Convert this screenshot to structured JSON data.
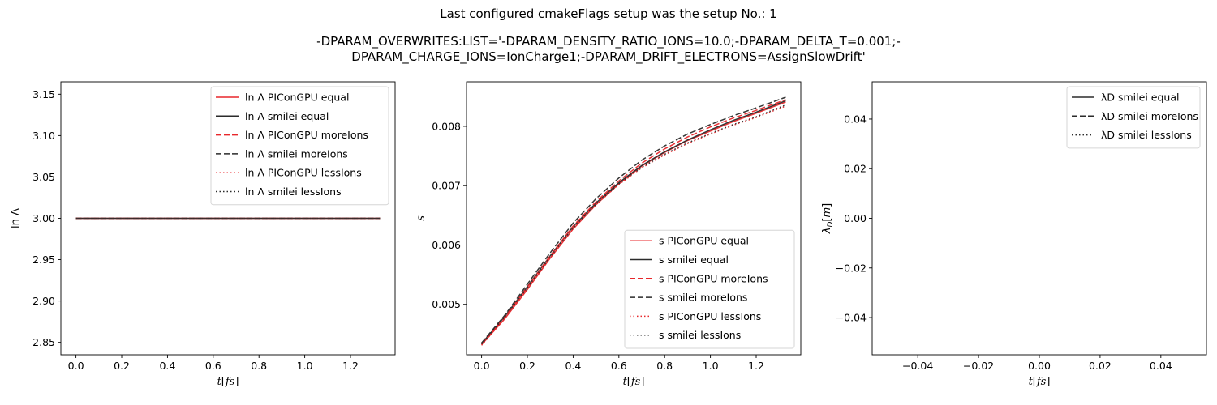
{
  "figure": {
    "suptitle": "Last configured cmakeFlags setup was the setup No.: 1",
    "subtitle_line1": "-DPARAM_OVERWRITES:LIST='-DPARAM_DENSITY_RATIO_IONS=10.0;-DPARAM_DELTA_T=0.001;-",
    "subtitle_line2": "DPARAM_CHARGE_IONS=IonCharge1;-DPARAM_DRIFT_ELECTRONS=AssignSlowDrift'"
  },
  "colors": {
    "red": "#e8272b",
    "black": "#2b2b2b",
    "axis": "#000000"
  },
  "chart_data": [
    {
      "type": "line",
      "id": "coulomb-log",
      "xlabel": "t[fs]",
      "ylabel": "ln Λ",
      "xlim": [
        -0.066,
        1.395
      ],
      "ylim": [
        2.835,
        3.165
      ],
      "xticks": [
        0.0,
        0.2,
        0.4,
        0.6,
        0.8,
        1.0,
        1.2
      ],
      "xtick_labels": [
        "0.0",
        "0.2",
        "0.4",
        "0.6",
        "0.8",
        "1.0",
        "1.2"
      ],
      "yticks": [
        2.85,
        2.9,
        2.95,
        3.0,
        3.05,
        3.1,
        3.15
      ],
      "ytick_labels": [
        "2.85",
        "2.90",
        "2.95",
        "3.00",
        "3.05",
        "3.10",
        "3.15"
      ],
      "legend_position": "top-right",
      "series": [
        {
          "name": "ln Λ PIConGPU equal",
          "color": "red",
          "dash": "solid",
          "x": [
            0.0,
            1.329
          ],
          "y": [
            3.0,
            3.0
          ]
        },
        {
          "name": "ln Λ smilei equal",
          "color": "black",
          "dash": "solid",
          "x": [
            0.0,
            1.329
          ],
          "y": [
            3.0,
            3.0
          ]
        },
        {
          "name": "ln Λ PIConGPU moreIons",
          "color": "red",
          "dash": "dashed",
          "x": [
            0.0,
            1.329
          ],
          "y": [
            3.0,
            3.0
          ]
        },
        {
          "name": "ln Λ smilei moreIons",
          "color": "black",
          "dash": "dashed",
          "x": [
            0.0,
            1.329
          ],
          "y": [
            3.0,
            3.0
          ]
        },
        {
          "name": "ln Λ PIConGPU lessIons",
          "color": "red",
          "dash": "dotted",
          "x": [
            0.0,
            1.329
          ],
          "y": [
            3.0,
            3.0
          ]
        },
        {
          "name": "ln Λ smilei lessIons",
          "color": "black",
          "dash": "dotted",
          "x": [
            0.0,
            1.329
          ],
          "y": [
            3.0,
            3.0
          ]
        }
      ]
    },
    {
      "type": "line",
      "id": "s-parameter",
      "xlabel": "t[fs]",
      "ylabel": "s",
      "xlim": [
        -0.066,
        1.395
      ],
      "ylim": [
        0.00415,
        0.00875
      ],
      "xticks": [
        0.0,
        0.2,
        0.4,
        0.6,
        0.8,
        1.0,
        1.2
      ],
      "xtick_labels": [
        "0.0",
        "0.2",
        "0.4",
        "0.6",
        "0.8",
        "1.0",
        "1.2"
      ],
      "yticks": [
        0.005,
        0.006,
        0.007,
        0.008
      ],
      "ytick_labels": [
        "0.005",
        "0.006",
        "0.007",
        "0.008"
      ],
      "legend_position": "bottom-right",
      "series": [
        {
          "name": "s PIConGPU equal",
          "color": "red",
          "dash": "solid",
          "x": [
            0.0,
            0.1,
            0.2,
            0.3,
            0.4,
            0.5,
            0.6,
            0.7,
            0.8,
            0.9,
            1.0,
            1.1,
            1.2,
            1.329
          ],
          "y": [
            0.00432,
            0.00475,
            0.00525,
            0.00578,
            0.00627,
            0.00668,
            0.00703,
            0.00733,
            0.00756,
            0.00776,
            0.00792,
            0.00808,
            0.00822,
            0.00841
          ]
        },
        {
          "name": "s smilei equal",
          "color": "black",
          "dash": "solid",
          "x": [
            0.0,
            0.1,
            0.2,
            0.3,
            0.4,
            0.5,
            0.6,
            0.7,
            0.8,
            0.9,
            1.0,
            1.1,
            1.2,
            1.329
          ],
          "y": [
            0.00434,
            0.00479,
            0.0053,
            0.00582,
            0.00631,
            0.00671,
            0.00705,
            0.00734,
            0.00757,
            0.00777,
            0.00794,
            0.0081,
            0.00824,
            0.00843
          ]
        },
        {
          "name": "s PIConGPU moreIons",
          "color": "red",
          "dash": "dashed",
          "x": [
            0.0,
            0.1,
            0.2,
            0.3,
            0.4,
            0.5,
            0.6,
            0.7,
            0.8,
            0.9,
            1.0,
            1.1,
            1.2,
            1.329
          ],
          "y": [
            0.00433,
            0.00478,
            0.00529,
            0.00582,
            0.00632,
            0.00673,
            0.00708,
            0.00738,
            0.00762,
            0.00782,
            0.00799,
            0.00814,
            0.00827,
            0.00845
          ]
        },
        {
          "name": "s smilei moreIons",
          "color": "black",
          "dash": "dashed",
          "x": [
            0.0,
            0.1,
            0.2,
            0.3,
            0.4,
            0.5,
            0.6,
            0.7,
            0.8,
            0.9,
            1.0,
            1.1,
            1.2,
            1.329
          ],
          "y": [
            0.00435,
            0.00481,
            0.00534,
            0.00587,
            0.00637,
            0.00678,
            0.00713,
            0.00743,
            0.00767,
            0.00787,
            0.00803,
            0.00818,
            0.00831,
            0.00849
          ]
        },
        {
          "name": "s PIConGPU lessIons",
          "color": "red",
          "dash": "dotted",
          "x": [
            0.0,
            0.1,
            0.2,
            0.3,
            0.4,
            0.5,
            0.6,
            0.7,
            0.8,
            0.9,
            1.0,
            1.1,
            1.2,
            1.329
          ],
          "y": [
            0.00431,
            0.00476,
            0.00527,
            0.00579,
            0.00628,
            0.00668,
            0.00702,
            0.0073,
            0.00752,
            0.00771,
            0.00787,
            0.00802,
            0.00815,
            0.00834
          ]
        },
        {
          "name": "s smilei lessIons",
          "color": "black",
          "dash": "dotted",
          "x": [
            0.0,
            0.1,
            0.2,
            0.3,
            0.4,
            0.5,
            0.6,
            0.7,
            0.8,
            0.9,
            1.0,
            1.1,
            1.2,
            1.329
          ],
          "y": [
            0.00433,
            0.00478,
            0.00528,
            0.0058,
            0.00629,
            0.00669,
            0.00703,
            0.00731,
            0.00753,
            0.00772,
            0.00788,
            0.00803,
            0.00816,
            0.00836
          ]
        }
      ]
    },
    {
      "type": "line",
      "id": "debye-length",
      "xlabel": "t[fs]",
      "ylabel": "λD[m]",
      "xlim": [
        -0.055,
        0.055
      ],
      "ylim": [
        -0.055,
        0.055
      ],
      "xticks": [
        -0.04,
        -0.02,
        0.0,
        0.02,
        0.04
      ],
      "xtick_labels": [
        "−0.04",
        "−0.02",
        "0.00",
        "0.02",
        "0.04"
      ],
      "yticks": [
        -0.04,
        -0.02,
        0.0,
        0.02,
        0.04
      ],
      "ytick_labels": [
        "−0.04",
        "−0.02",
        "0.00",
        "0.02",
        "0.04"
      ],
      "legend_position": "top-right",
      "series": [
        {
          "name": "λD smilei equal",
          "color": "black",
          "dash": "solid",
          "x": [],
          "y": []
        },
        {
          "name": "λD smilei moreIons",
          "color": "black",
          "dash": "dashed",
          "x": [],
          "y": []
        },
        {
          "name": "λD smilei lessIons",
          "color": "black",
          "dash": "dotted",
          "x": [],
          "y": []
        }
      ]
    }
  ]
}
